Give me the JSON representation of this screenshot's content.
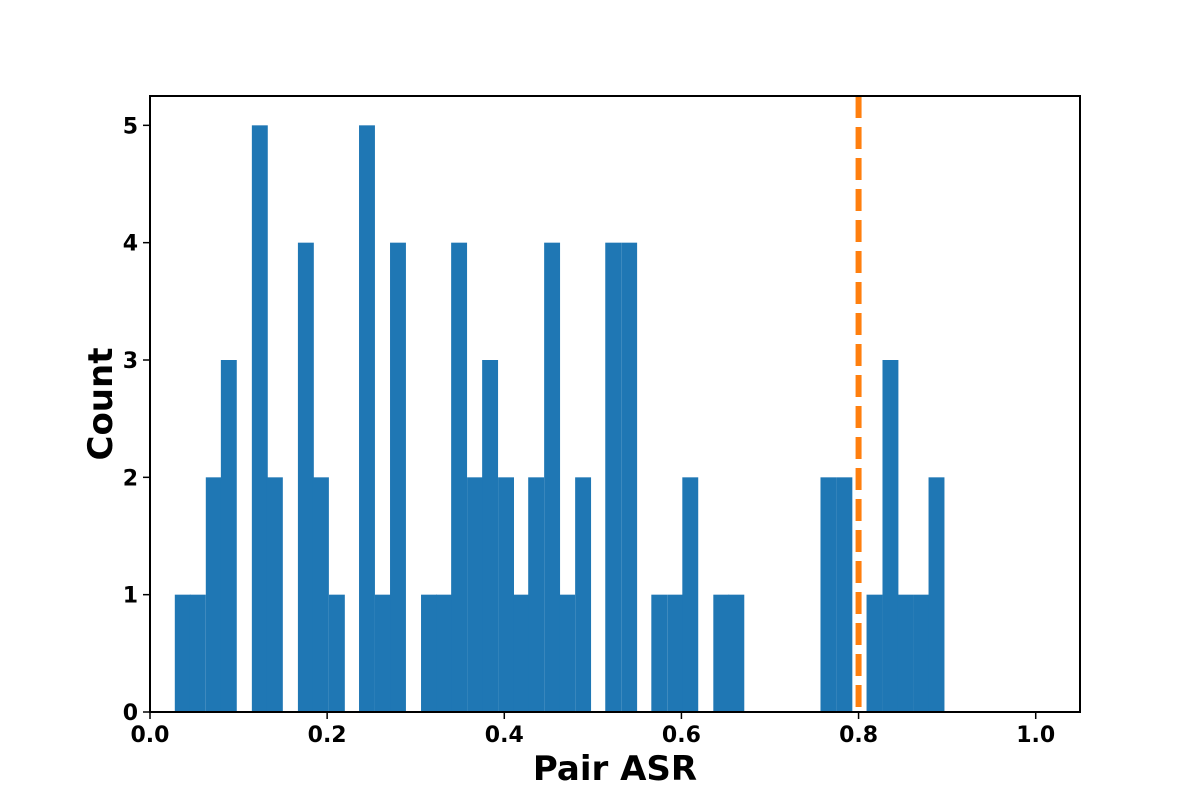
{
  "chart_data": {
    "type": "bar",
    "subtype": "histogram",
    "title": "",
    "xlabel": "Pair ASR",
    "ylabel": "Count",
    "xlim": [
      0.0,
      1.05
    ],
    "ylim": [
      0,
      5.25
    ],
    "bin_width": 0.0174,
    "x_ticks": [
      0.0,
      0.2,
      0.4,
      0.6,
      0.8,
      1.0
    ],
    "x_tick_labels": [
      "0.0",
      "0.2",
      "0.4",
      "0.6",
      "0.8",
      "1.0"
    ],
    "y_ticks": [
      0,
      1,
      2,
      3,
      4,
      5
    ],
    "y_tick_labels": [
      "0",
      "1",
      "2",
      "3",
      "4",
      "5"
    ],
    "bins": [
      {
        "x": 0.028,
        "count": 1
      },
      {
        "x": 0.045,
        "count": 1
      },
      {
        "x": 0.063,
        "count": 2
      },
      {
        "x": 0.08,
        "count": 3
      },
      {
        "x": 0.115,
        "count": 5
      },
      {
        "x": 0.132,
        "count": 2
      },
      {
        "x": 0.167,
        "count": 4
      },
      {
        "x": 0.184,
        "count": 2
      },
      {
        "x": 0.202,
        "count": 1
      },
      {
        "x": 0.236,
        "count": 5
      },
      {
        "x": 0.254,
        "count": 1
      },
      {
        "x": 0.271,
        "count": 4
      },
      {
        "x": 0.306,
        "count": 1
      },
      {
        "x": 0.323,
        "count": 1
      },
      {
        "x": 0.34,
        "count": 4
      },
      {
        "x": 0.358,
        "count": 2
      },
      {
        "x": 0.375,
        "count": 3
      },
      {
        "x": 0.393,
        "count": 2
      },
      {
        "x": 0.41,
        "count": 1
      },
      {
        "x": 0.427,
        "count": 2
      },
      {
        "x": 0.445,
        "count": 4
      },
      {
        "x": 0.462,
        "count": 1
      },
      {
        "x": 0.48,
        "count": 2
      },
      {
        "x": 0.514,
        "count": 4
      },
      {
        "x": 0.532,
        "count": 4
      },
      {
        "x": 0.566,
        "count": 1
      },
      {
        "x": 0.584,
        "count": 1
      },
      {
        "x": 0.601,
        "count": 2
      },
      {
        "x": 0.636,
        "count": 1
      },
      {
        "x": 0.653,
        "count": 1
      },
      {
        "x": 0.757,
        "count": 2
      },
      {
        "x": 0.775,
        "count": 2
      },
      {
        "x": 0.809,
        "count": 1
      },
      {
        "x": 0.827,
        "count": 3
      },
      {
        "x": 0.844,
        "count": 1
      },
      {
        "x": 0.862,
        "count": 1
      },
      {
        "x": 0.879,
        "count": 2
      }
    ],
    "bar_color": "#1f77b4",
    "reference_line": {
      "x": 0.8,
      "style": "dashed",
      "color": "#ff7f0e"
    },
    "grid": false,
    "legend": "none"
  }
}
